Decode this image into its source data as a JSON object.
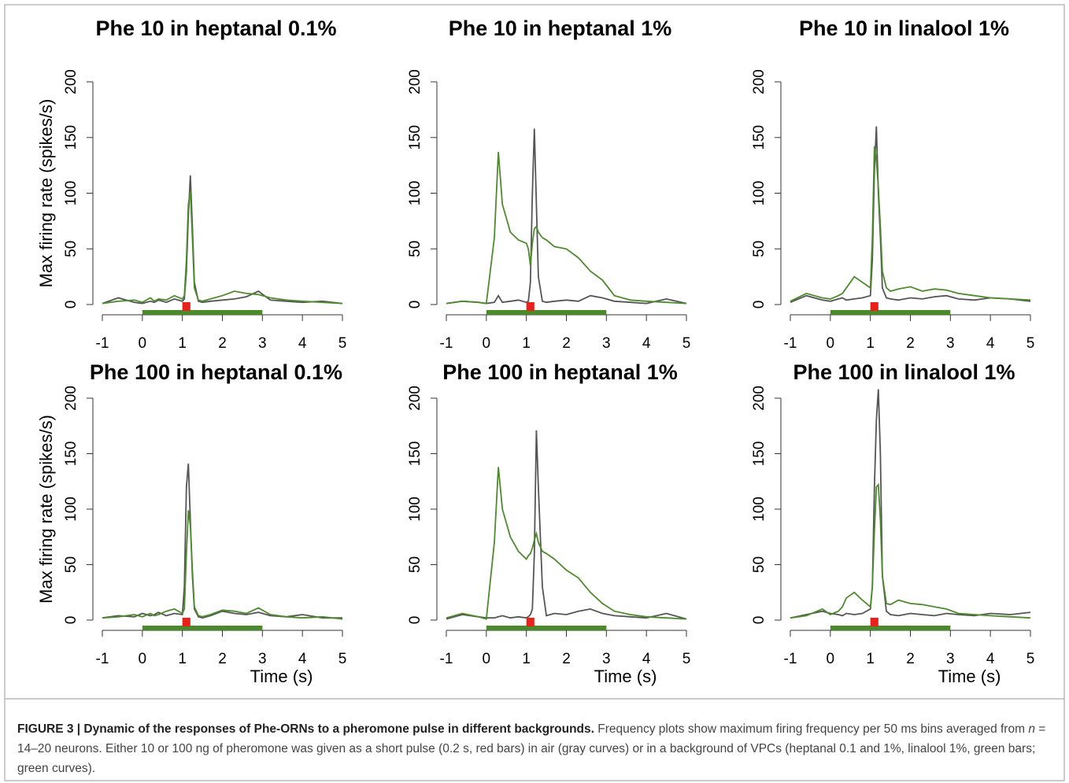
{
  "chart_data": [
    {
      "type": "line",
      "title": "Phe 10 in heptanal 0.1%",
      "y_label": "Max firing rate (spikes/s)",
      "x": [
        -1,
        -0.6,
        -0.2,
        0,
        0.2,
        0.3,
        0.4,
        0.6,
        0.8,
        1.0,
        1.05,
        1.1,
        1.15,
        1.2,
        1.25,
        1.3,
        1.4,
        1.5,
        1.7,
        2.0,
        2.3,
        2.6,
        2.9,
        3.2,
        3.6,
        4.0,
        4.5,
        5.0
      ],
      "series": [
        {
          "color": "#555555",
          "values": [
            1,
            6,
            2,
            1,
            3,
            2,
            4,
            2,
            5,
            3,
            5,
            30,
            80,
            116,
            70,
            20,
            3,
            2,
            3,
            4,
            5,
            7,
            12,
            4,
            3,
            2,
            3,
            1
          ]
        },
        {
          "color": "#4e8a2e",
          "values": [
            1,
            3,
            4,
            2,
            6,
            3,
            5,
            4,
            8,
            5,
            8,
            40,
            90,
            102,
            60,
            15,
            4,
            3,
            5,
            8,
            12,
            10,
            9,
            6,
            4,
            3,
            2,
            1
          ]
        }
      ],
      "background_bar": [
        0,
        3
      ],
      "pulse_bar": [
        1.0,
        1.2
      ],
      "bar_colors": [
        "#4a8a2a",
        "#e8211a"
      ],
      "xlim": [
        -1,
        5
      ],
      "xticks": [
        -1,
        0,
        1,
        2,
        3,
        4,
        5
      ],
      "ylim": [
        0,
        200
      ],
      "yticks": [
        0,
        50,
        100,
        150,
        200
      ]
    },
    {
      "type": "line",
      "title": "Phe 10 in heptanal 1%",
      "x": [
        -1,
        -0.6,
        -0.2,
        0,
        0.2,
        0.3,
        0.4,
        0.6,
        0.8,
        1.0,
        1.05,
        1.1,
        1.15,
        1.2,
        1.25,
        1.3,
        1.4,
        1.5,
        1.7,
        2.0,
        2.3,
        2.6,
        2.9,
        3.2,
        3.6,
        4.0,
        4.5,
        5.0
      ],
      "series": [
        {
          "color": "#555555",
          "values": [
            1,
            3,
            2,
            1,
            2,
            8,
            2,
            3,
            4,
            2,
            3,
            20,
            100,
            158,
            90,
            25,
            3,
            2,
            3,
            4,
            3,
            8,
            6,
            3,
            2,
            1,
            5,
            1
          ]
        },
        {
          "color": "#4e8a2e",
          "values": [
            1,
            3,
            2,
            1,
            60,
            137,
            90,
            65,
            58,
            55,
            50,
            35,
            55,
            68,
            70,
            65,
            60,
            58,
            52,
            50,
            42,
            30,
            22,
            8,
            4,
            3,
            2,
            1
          ]
        }
      ],
      "background_bar": [
        0,
        3
      ],
      "pulse_bar": [
        1.0,
        1.2
      ],
      "bar_colors": [
        "#4a8a2a",
        "#e8211a"
      ],
      "xlim": [
        -1,
        5
      ],
      "xticks": [
        -1,
        0,
        1,
        2,
        3,
        4,
        5
      ],
      "ylim": [
        0,
        200
      ],
      "yticks": [
        0,
        50,
        100,
        150,
        200
      ]
    },
    {
      "type": "line",
      "title": "Phe 10 in linalool 1%",
      "x": [
        -1,
        -0.6,
        -0.2,
        0,
        0.2,
        0.3,
        0.4,
        0.6,
        0.8,
        1.0,
        1.05,
        1.1,
        1.15,
        1.2,
        1.25,
        1.3,
        1.4,
        1.5,
        1.7,
        2.0,
        2.3,
        2.6,
        2.9,
        3.2,
        3.6,
        4.0,
        4.5,
        5.0
      ],
      "series": [
        {
          "color": "#555555",
          "values": [
            2,
            8,
            4,
            3,
            5,
            6,
            4,
            5,
            6,
            8,
            40,
            120,
            160,
            100,
            60,
            15,
            6,
            5,
            4,
            6,
            5,
            7,
            8,
            5,
            4,
            6,
            5,
            3
          ]
        },
        {
          "color": "#4e8a2e",
          "values": [
            3,
            10,
            6,
            5,
            8,
            10,
            15,
            25,
            20,
            15,
            60,
            142,
            130,
            105,
            70,
            30,
            15,
            12,
            14,
            16,
            12,
            14,
            13,
            10,
            8,
            6,
            5,
            4
          ]
        }
      ],
      "background_bar": [
        0,
        3
      ],
      "pulse_bar": [
        1.0,
        1.2
      ],
      "bar_colors": [
        "#4a8a2a",
        "#e8211a"
      ],
      "xlim": [
        -1,
        5
      ],
      "xticks": [
        -1,
        0,
        1,
        2,
        3,
        4,
        5
      ],
      "ylim": [
        0,
        200
      ],
      "yticks": [
        0,
        50,
        100,
        150,
        200
      ]
    },
    {
      "type": "line",
      "title": "Phe 100 in heptanal 0.1%",
      "y_label": "Max firing rate (spikes/s)",
      "x": [
        -1,
        -0.6,
        -0.2,
        0,
        0.2,
        0.3,
        0.4,
        0.6,
        0.8,
        1.0,
        1.05,
        1.1,
        1.15,
        1.2,
        1.25,
        1.3,
        1.4,
        1.5,
        1.7,
        2.0,
        2.3,
        2.6,
        2.9,
        3.2,
        3.6,
        4.0,
        4.5,
        5.0
      ],
      "series": [
        {
          "color": "#555555",
          "values": [
            2,
            4,
            3,
            6,
            4,
            5,
            7,
            4,
            6,
            5,
            30,
            120,
            141,
            90,
            40,
            10,
            3,
            2,
            4,
            8,
            6,
            5,
            7,
            4,
            3,
            5,
            2,
            2
          ]
        },
        {
          "color": "#4e8a2e",
          "values": [
            2,
            3,
            5,
            3,
            6,
            4,
            5,
            8,
            10,
            6,
            10,
            60,
            99,
            85,
            45,
            12,
            4,
            3,
            5,
            9,
            8,
            6,
            11,
            5,
            3,
            2,
            3,
            1
          ]
        }
      ],
      "background_bar": [
        0,
        3
      ],
      "pulse_bar": [
        1.0,
        1.2
      ],
      "bar_colors": [
        "#4a8a2a",
        "#e8211a"
      ],
      "xlim": [
        -1,
        5
      ],
      "xticks": [
        -1,
        0,
        1,
        2,
        3,
        4,
        5
      ],
      "ylim": [
        0,
        200
      ],
      "yticks": [
        0,
        50,
        100,
        150,
        200
      ],
      "x_label": "Time (s)"
    },
    {
      "type": "line",
      "title": "Phe 100 in heptanal 1%",
      "x": [
        -1,
        -0.6,
        -0.2,
        0,
        0.2,
        0.3,
        0.4,
        0.6,
        0.8,
        1.0,
        1.05,
        1.1,
        1.15,
        1.2,
        1.25,
        1.3,
        1.4,
        1.5,
        1.7,
        2.0,
        2.3,
        2.6,
        2.9,
        3.2,
        3.6,
        4.0,
        4.5,
        5.0
      ],
      "series": [
        {
          "color": "#555555",
          "values": [
            1,
            5,
            3,
            2,
            2,
            3,
            4,
            2,
            3,
            2,
            3,
            5,
            10,
            60,
            171,
            120,
            30,
            4,
            6,
            5,
            8,
            10,
            6,
            4,
            3,
            2,
            6,
            1
          ]
        },
        {
          "color": "#4e8a2e",
          "values": [
            2,
            6,
            3,
            1,
            70,
            138,
            100,
            75,
            62,
            55,
            58,
            60,
            65,
            72,
            78,
            70,
            62,
            60,
            55,
            45,
            38,
            25,
            15,
            8,
            5,
            3,
            2,
            1
          ]
        }
      ],
      "background_bar": [
        0,
        3
      ],
      "pulse_bar": [
        1.0,
        1.2
      ],
      "bar_colors": [
        "#4a8a2a",
        "#e8211a"
      ],
      "xlim": [
        -1,
        5
      ],
      "xticks": [
        -1,
        0,
        1,
        2,
        3,
        4,
        5
      ],
      "ylim": [
        0,
        200
      ],
      "yticks": [
        0,
        50,
        100,
        150,
        200
      ],
      "x_label": "Time (s)"
    },
    {
      "type": "line",
      "title": "Phe 100 in linalool 1%",
      "x": [
        -1,
        -0.6,
        -0.2,
        0,
        0.2,
        0.3,
        0.4,
        0.6,
        0.8,
        1.0,
        1.05,
        1.1,
        1.15,
        1.2,
        1.25,
        1.3,
        1.4,
        1.5,
        1.7,
        2.0,
        2.3,
        2.6,
        2.9,
        3.2,
        3.6,
        4.0,
        4.5,
        5.0
      ],
      "series": [
        {
          "color": "#555555",
          "values": [
            2,
            5,
            8,
            6,
            5,
            4,
            6,
            5,
            6,
            10,
            30,
            120,
            180,
            208,
            150,
            40,
            8,
            5,
            4,
            6,
            5,
            4,
            6,
            5,
            4,
            6,
            5,
            7
          ]
        },
        {
          "color": "#4e8a2e",
          "values": [
            2,
            4,
            10,
            5,
            8,
            12,
            20,
            25,
            18,
            12,
            30,
            80,
            120,
            122,
            90,
            40,
            15,
            14,
            18,
            15,
            14,
            12,
            10,
            6,
            5,
            4,
            3,
            2
          ]
        }
      ],
      "background_bar": [
        0,
        3
      ],
      "pulse_bar": [
        1.0,
        1.2
      ],
      "bar_colors": [
        "#4a8a2a",
        "#e8211a"
      ],
      "xlim": [
        -1,
        5
      ],
      "xticks": [
        -1,
        0,
        1,
        2,
        3,
        4,
        5
      ],
      "ylim": [
        0,
        200
      ],
      "yticks": [
        0,
        50,
        100,
        150,
        200
      ],
      "x_label": "Time (s)"
    }
  ],
  "caption": {
    "bold": "FIGURE 3 | Dynamic of the responses of Phe-ORNs to a pheromone pulse in different backgrounds.",
    "text_1": " Frequency plots show maximum firing frequency per 50 ms bins averaged from ",
    "italic": "n",
    "text_2": " = 14–20 neurons. Either 10 or 100 ng of pheromone was given as a short pulse (0.2 s, red bars) in air (gray curves) or in a background of VPCs (heptanal 0.1 and 1%, linalool 1%, green bars; green curves)."
  }
}
